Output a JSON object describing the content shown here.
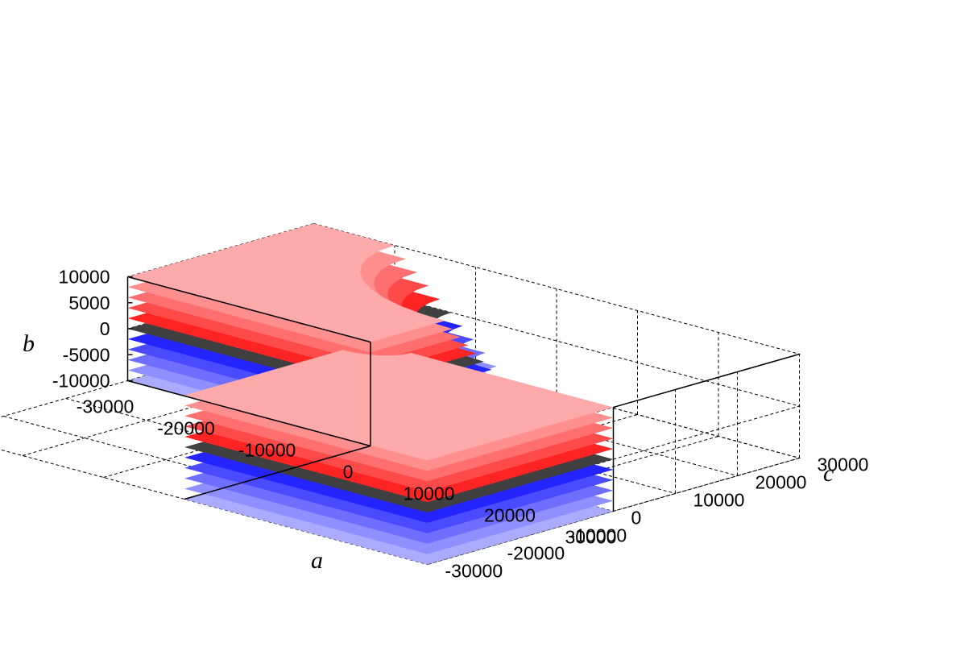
{
  "chart_data": {
    "type": "surface3d",
    "title": "",
    "xlabel": "a",
    "ylabel": "b",
    "zlabel": "c",
    "xlim": [
      -30000,
      30000
    ],
    "ylim": [
      -10000,
      10000
    ],
    "zlim": [
      -30000,
      30000
    ],
    "x_ticks": [
      "-30000",
      "-20000",
      "-10000",
      "0",
      "10000",
      "20000",
      "30000"
    ],
    "y_ticks": [
      "10000",
      "5000",
      "0",
      "-5000",
      "-10000"
    ],
    "z_ticks": [
      "30000",
      "20000",
      "10000",
      "0",
      "-10000",
      "-20000",
      "-30000"
    ],
    "layers": [
      {
        "b": 10000,
        "color": "#ffaaaa"
      },
      {
        "b": 8000,
        "color": "#ff8f8f"
      },
      {
        "b": 6000,
        "color": "#ff6f6f"
      },
      {
        "b": 4000,
        "color": "#ff4a4a"
      },
      {
        "b": 2000,
        "color": "#ff2424"
      },
      {
        "b": 0,
        "color": "#404040"
      },
      {
        "b": -2000,
        "color": "#2424ff"
      },
      {
        "b": -4000,
        "color": "#4a4aff"
      },
      {
        "b": -6000,
        "color": "#6f6fff"
      },
      {
        "b": -8000,
        "color": "#8f8fff"
      },
      {
        "b": -10000,
        "color": "#aaaaff"
      }
    ]
  }
}
